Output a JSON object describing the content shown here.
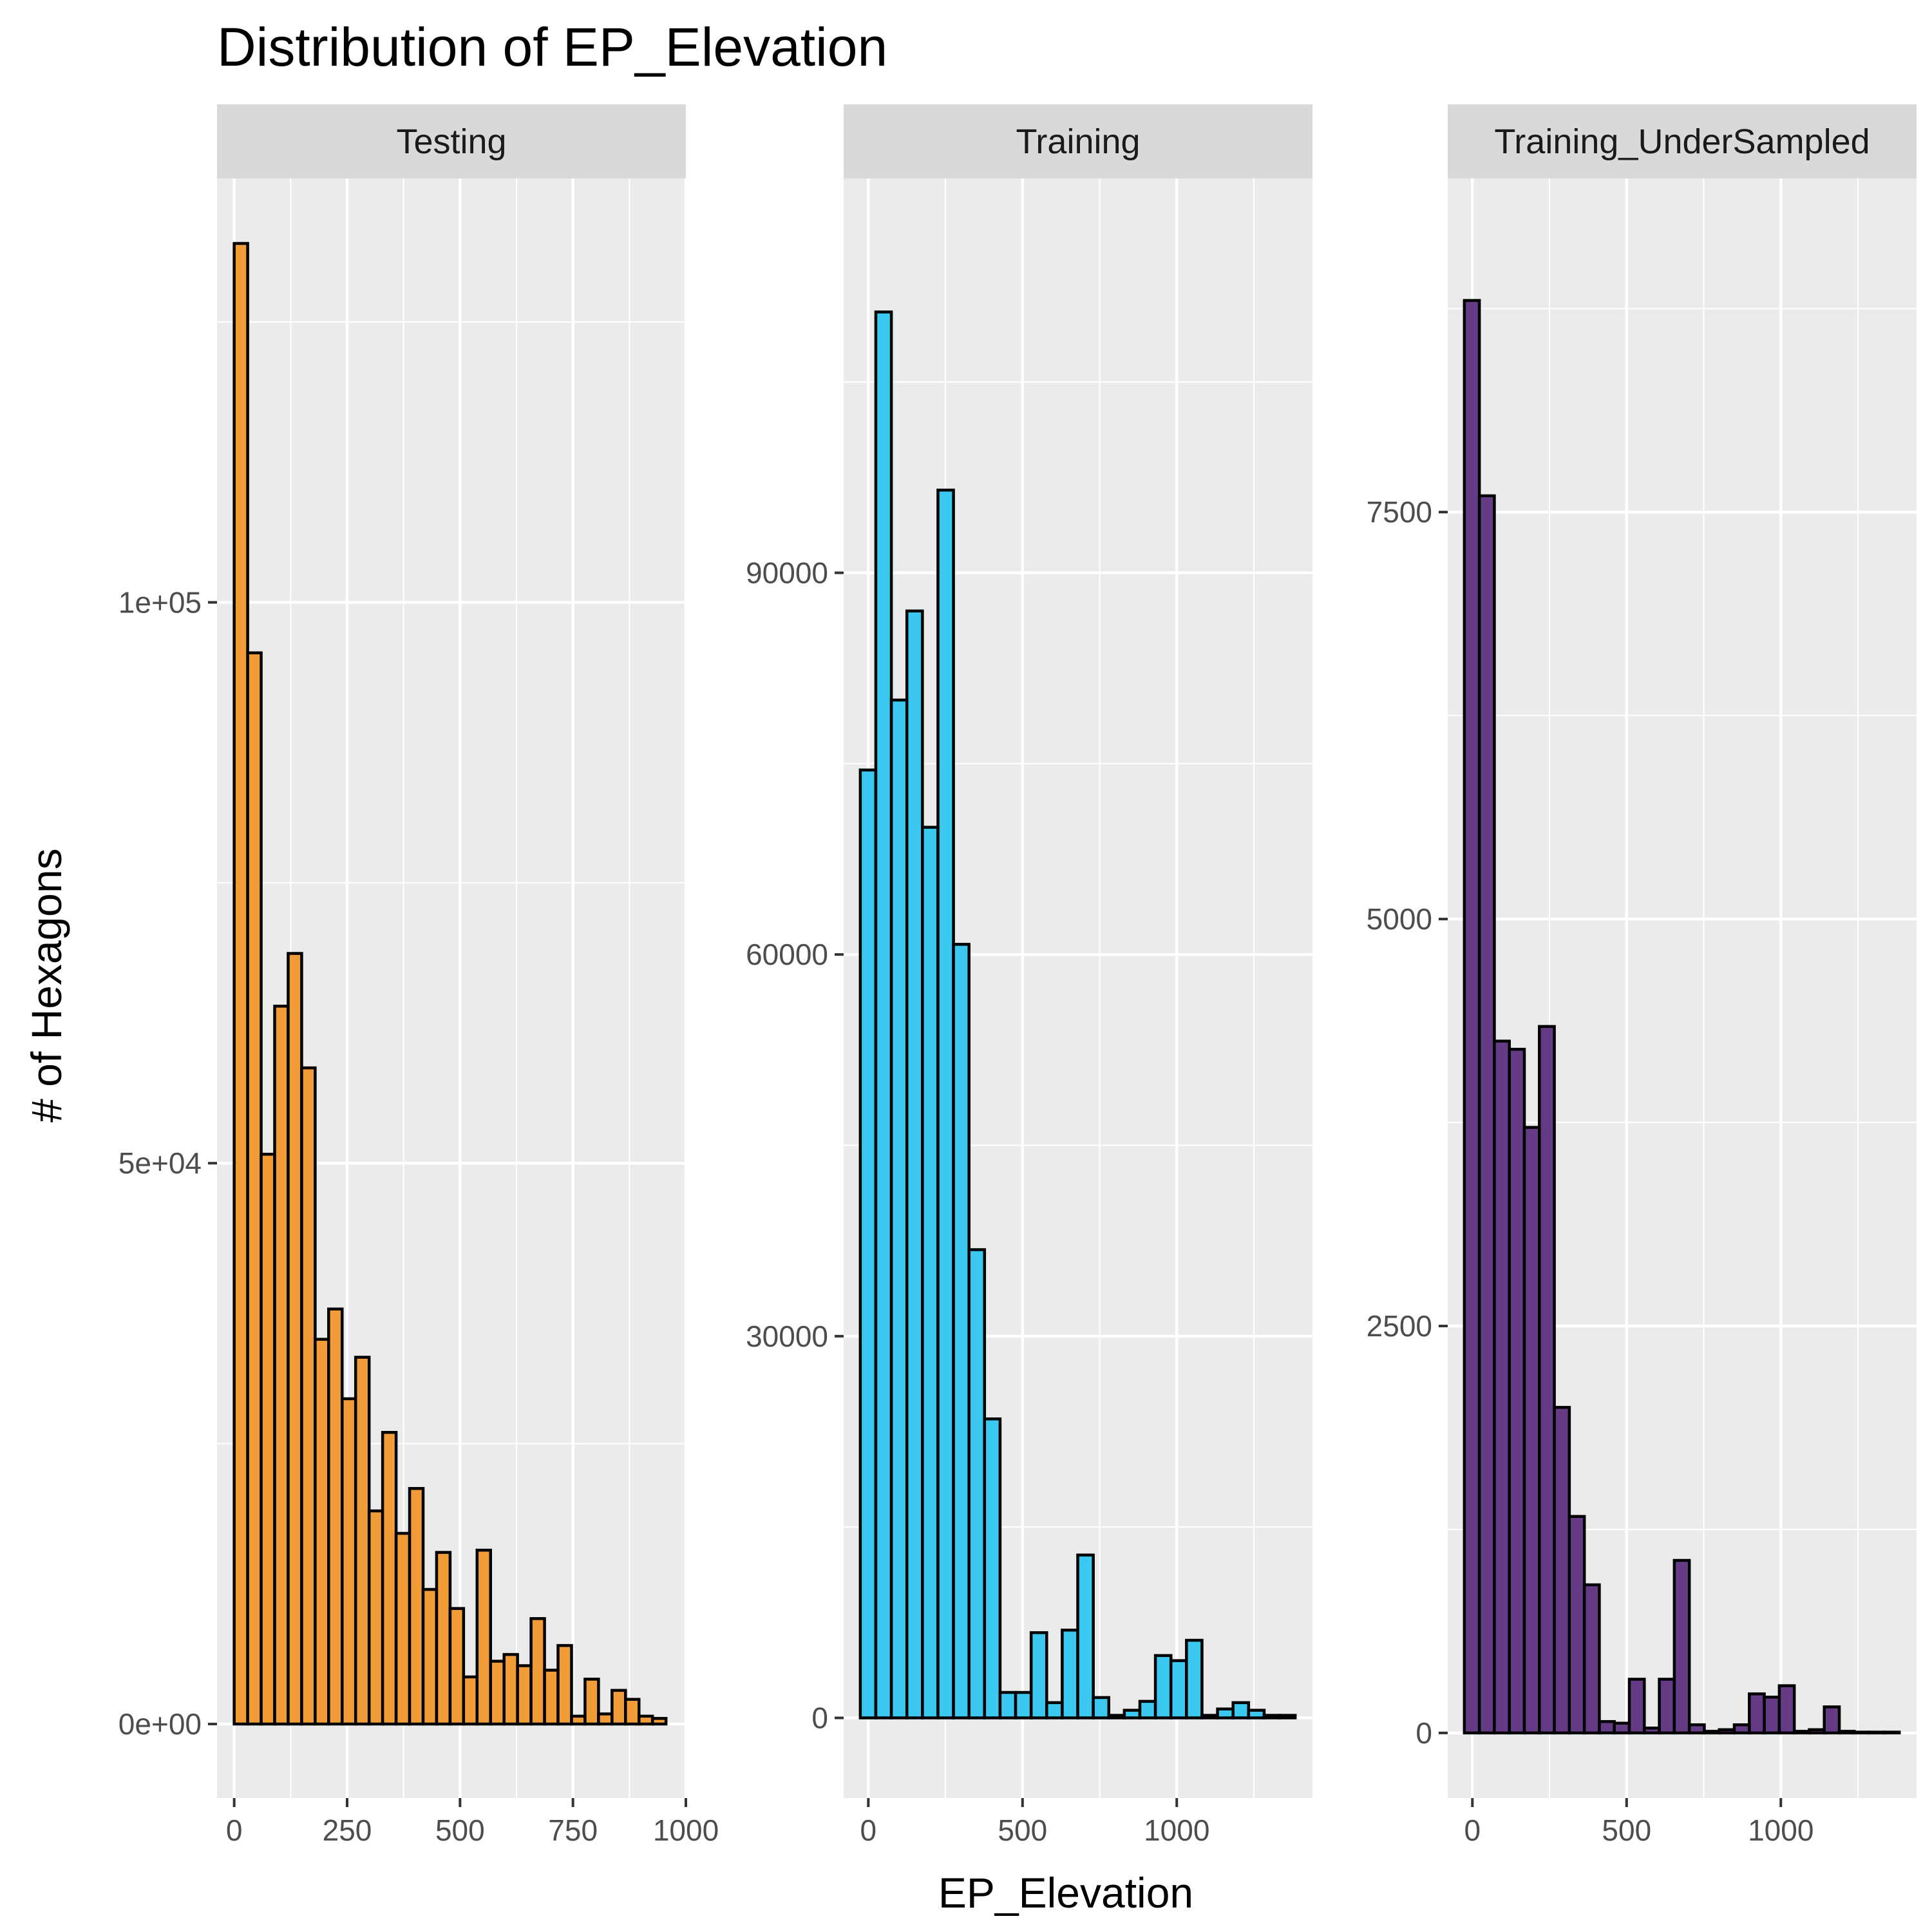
{
  "chart_data": {
    "type": "bar",
    "title": "Distribution of EP_Elevation",
    "xlabel": "EP_Elevation",
    "ylabel": "# of Hexagons",
    "grid": true,
    "legend": "none",
    "colors": {
      "panel_bg": "#EBEBEB",
      "strip_bg": "#D9D9D9",
      "grid": "#FFFFFF",
      "bar_outline": "#000000"
    },
    "facets": [
      {
        "name": "Testing",
        "fill": "#F29C38",
        "bin_width": 31,
        "x_range": [
          0,
          956
        ],
        "xlim": [
          -38,
          1000
        ],
        "ylim": [
          -6600,
          137800
        ],
        "x_ticks": [
          0,
          250,
          500,
          750,
          1000
        ],
        "x_tick_labels": [
          "0",
          "250",
          "500",
          "750",
          "1000"
        ],
        "y_ticks": [
          0,
          50000,
          100000
        ],
        "y_tick_labels": [
          "0e+00",
          "5e+04",
          "1e+05"
        ],
        "values": [
          132000,
          95500,
          50800,
          64000,
          68700,
          58500,
          34300,
          37000,
          29000,
          32700,
          19000,
          26000,
          17000,
          21000,
          12000,
          15300,
          10300,
          4200,
          15500,
          5600,
          6200,
          5200,
          9400,
          4800,
          7000,
          700,
          4000,
          900,
          3000,
          2200,
          700,
          500
        ]
      },
      {
        "name": "Training",
        "fill": "#3BC8F0",
        "bin_width": 44,
        "x_range": [
          -26,
          1384
        ],
        "xlim": [
          -80,
          1440
        ],
        "ylim": [
          -6300,
          121000
        ],
        "x_ticks": [
          0,
          500,
          1000
        ],
        "x_tick_labels": [
          "0",
          "500",
          "1000"
        ],
        "y_ticks": [
          0,
          30000,
          60000,
          90000
        ],
        "y_tick_labels": [
          "0",
          "30000",
          "60000",
          "90000"
        ],
        "values": [
          74500,
          110500,
          80000,
          87000,
          70000,
          96500,
          60800,
          36800,
          23500,
          2000,
          2000,
          6700,
          1200,
          6900,
          12800,
          1600,
          200,
          600,
          1300,
          4900,
          4500,
          6100,
          200,
          700,
          1200,
          600,
          200,
          200
        ]
      },
      {
        "name": "Training_UnderSampled",
        "fill": "#663B86",
        "bin_width": 49,
        "x_range": [
          -26,
          1384
        ],
        "xlim": [
          -80,
          1440
        ],
        "ylim": [
          -400,
          9550
        ],
        "x_ticks": [
          0,
          500,
          1000
        ],
        "x_tick_labels": [
          "0",
          "500",
          "1000"
        ],
        "y_ticks": [
          0,
          2500,
          5000,
          7500
        ],
        "y_tick_labels": [
          "0",
          "2500",
          "5000",
          "7500"
        ],
        "values": [
          8800,
          7600,
          4250,
          4200,
          3720,
          4340,
          2000,
          1330,
          910,
          70,
          60,
          330,
          30,
          330,
          1060,
          50,
          10,
          20,
          50,
          240,
          220,
          290,
          10,
          20,
          160,
          10,
          5,
          5,
          5
        ]
      }
    ]
  }
}
